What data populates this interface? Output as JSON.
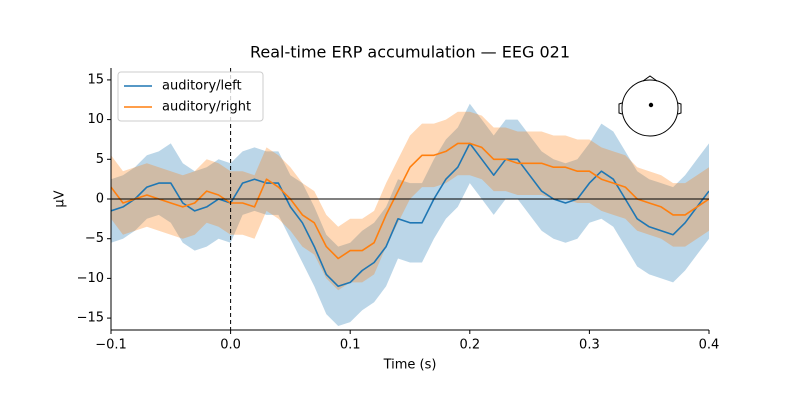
{
  "chart_data": {
    "type": "line",
    "title": "Real-time ERP accumulation — EEG 021",
    "xlabel": "Time (s)",
    "ylabel": "µV",
    "x": [
      -0.1,
      -0.09,
      -0.08,
      -0.07,
      -0.06,
      -0.05,
      -0.04,
      -0.03,
      -0.02,
      -0.01,
      0,
      0.01,
      0.02,
      0.03,
      0.04,
      0.05,
      0.06,
      0.07,
      0.08,
      0.09,
      0.1,
      0.11,
      0.12,
      0.13,
      0.14,
      0.15,
      0.16,
      0.17,
      0.18,
      0.19,
      0.2,
      0.21,
      0.22,
      0.23,
      0.24,
      0.25,
      0.26,
      0.27,
      0.28,
      0.29,
      0.3,
      0.31,
      0.32,
      0.33,
      0.34,
      0.35,
      0.36,
      0.37,
      0.38,
      0.39,
      0.4
    ],
    "series": [
      {
        "name": "auditory/left",
        "color": "#1f77b4",
        "values": [
          -1.5,
          -1,
          0,
          1.5,
          2,
          2,
          -0.5,
          -1.5,
          -1,
          0,
          -0.5,
          2,
          2.5,
          2,
          2,
          -1,
          -3,
          -6,
          -9.5,
          -11,
          -10.5,
          -9,
          -8,
          -6,
          -2.5,
          -3,
          -3,
          0,
          2.5,
          4,
          7,
          5,
          3,
          5,
          5,
          3,
          1,
          0,
          -0.5,
          0,
          2,
          3.5,
          2.5,
          0,
          -2.5,
          -3.5,
          -4,
          -4.5,
          -3,
          -1,
          1
        ],
        "upper": [
          2.5,
          3,
          4,
          5.5,
          6,
          7,
          4.5,
          3.5,
          4,
          5,
          4.5,
          6,
          6.5,
          6,
          6,
          3,
          2,
          -1,
          -4.5,
          -6,
          -5.5,
          -4,
          -3,
          -1,
          2.5,
          2,
          2,
          5,
          7.5,
          9,
          12,
          10,
          8,
          10,
          10,
          8,
          6,
          5,
          4.5,
          5,
          7,
          9.5,
          8.5,
          6,
          3.5,
          2.5,
          2,
          1.5,
          3,
          5,
          7
        ],
        "lower": [
          -5.5,
          -5,
          -4,
          -2.5,
          -2,
          -3,
          -5.5,
          -6.5,
          -6,
          -5,
          -5.5,
          -2,
          -1.5,
          -2,
          -2,
          -5,
          -8,
          -11,
          -14.5,
          -16,
          -15.5,
          -14,
          -13,
          -11,
          -7.5,
          -8,
          -8,
          -5,
          -2.5,
          -1,
          2,
          0,
          -2,
          0,
          0,
          -2,
          -4,
          -5,
          -5.5,
          -5,
          -3,
          -2.5,
          -3.5,
          -6,
          -8.5,
          -9.5,
          -10,
          -10.5,
          -9,
          -7,
          -5
        ]
      },
      {
        "name": "auditory/right",
        "color": "#ff7f0e",
        "values": [
          1.5,
          -0.5,
          0,
          0.5,
          0,
          -0.5,
          -1,
          -0.5,
          1,
          0.5,
          -0.5,
          -0.5,
          -1,
          2.5,
          1.5,
          0,
          -2,
          -3,
          -6,
          -7.5,
          -6.5,
          -6.5,
          -5.5,
          -2,
          1,
          4,
          5.5,
          5.5,
          6,
          7,
          7,
          6.5,
          5,
          5,
          4.5,
          4.5,
          4.5,
          4,
          4,
          3.5,
          3.5,
          2.5,
          2,
          1.5,
          0,
          -0.5,
          -1,
          -2,
          -2,
          -1,
          0
        ],
        "upper": [
          5.5,
          3.5,
          4,
          4.5,
          4,
          3.5,
          3,
          3.5,
          5,
          4.5,
          3.5,
          3.5,
          3,
          6.5,
          5.5,
          4,
          2,
          1,
          -2,
          -3.5,
          -2.5,
          -2.5,
          -1.5,
          2,
          5,
          8,
          9.5,
          9.5,
          10,
          11,
          11,
          10.5,
          9,
          9,
          8.5,
          8.5,
          8.5,
          8,
          8,
          7.5,
          7.5,
          6.5,
          6,
          5.5,
          4,
          3.5,
          3,
          2,
          2,
          3,
          4
        ],
        "lower": [
          -2.5,
          -4.5,
          -4,
          -3.5,
          -4,
          -4.5,
          -5,
          -4.5,
          -3,
          -3.5,
          -4.5,
          -4.5,
          -5,
          -1.5,
          -2.5,
          -4,
          -6,
          -7,
          -10,
          -11.5,
          -10.5,
          -10.5,
          -9.5,
          -6,
          -3,
          0,
          1.5,
          1.5,
          2,
          3,
          3,
          2.5,
          1,
          1,
          0.5,
          0.5,
          0.5,
          0,
          0,
          -0.5,
          -0.5,
          -1.5,
          -2,
          -2.5,
          -4,
          -4.5,
          -5,
          -6,
          -6,
          -5,
          -4
        ]
      }
    ],
    "xlim": [
      -0.1,
      0.4
    ],
    "xticks": [
      {
        "value": -0.1,
        "label": "−0.1"
      },
      {
        "value": 0,
        "label": "0.0"
      },
      0.1,
      0.2,
      0.3,
      0.4
    ],
    "ylim": [
      -16.5,
      16.5
    ],
    "yticks": [
      {
        "value": -15,
        "label": "−15"
      },
      {
        "value": -10,
        "label": "−10"
      },
      {
        "value": -5,
        "label": "−5"
      },
      0,
      5,
      10,
      15
    ],
    "legend": "upper left"
  }
}
